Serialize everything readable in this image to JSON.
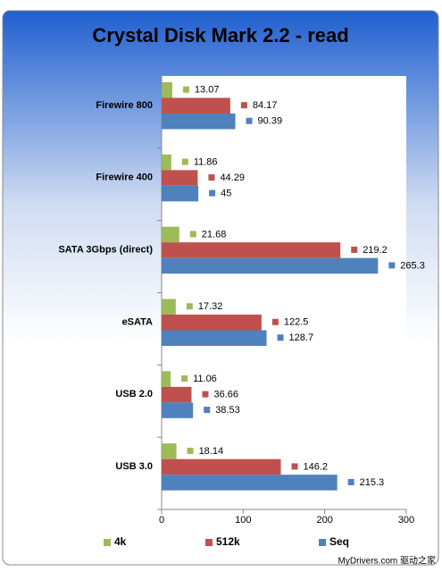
{
  "chart_data": {
    "type": "hbar",
    "title": "Crystal Disk Mark 2.2 - read",
    "categories": [
      "Firewire 800",
      "Firewire 400",
      "SATA 3Gbps (direct)",
      "eSATA",
      "USB 2.0",
      "USB 3.0"
    ],
    "series": [
      {
        "name": "4k",
        "color": "#9bbb59",
        "values": [
          13.07,
          11.86,
          21.68,
          17.32,
          11.06,
          18.14
        ]
      },
      {
        "name": "512k",
        "color": "#c0504d",
        "values": [
          84.17,
          44.29,
          219.2,
          122.5,
          36.66,
          146.2
        ]
      },
      {
        "name": "Seq",
        "color": "#4f81bd",
        "values": [
          90.39,
          45,
          265.3,
          128.7,
          38.53,
          215.3
        ]
      }
    ],
    "xlim": [
      0,
      300
    ],
    "xticks": [
      0,
      100,
      200,
      300
    ],
    "legend": "bottom",
    "watermark": "MyDrivers.com 驱动之家"
  }
}
